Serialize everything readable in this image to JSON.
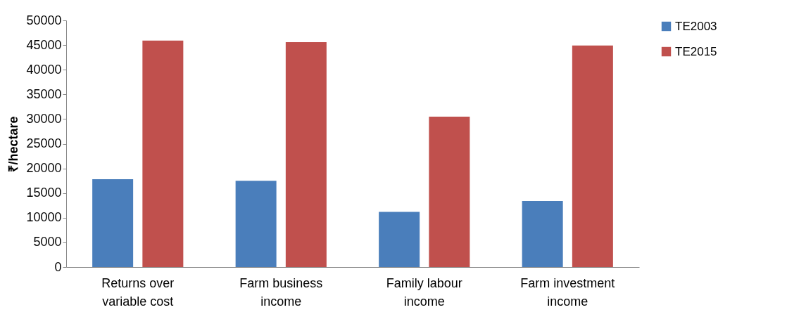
{
  "chart_data": {
    "type": "bar",
    "ylabel": "₹/hectare",
    "categories": [
      "Returns over variable cost",
      "Farm business income",
      "Family labour income",
      "Farm investment income"
    ],
    "series": [
      {
        "name": "TE2003",
        "color": "#4a7ebb",
        "values": [
          17800,
          17500,
          11200,
          13400
        ]
      },
      {
        "name": "TE2015",
        "color": "#c0504d",
        "values": [
          45900,
          45600,
          30500,
          44900
        ]
      }
    ],
    "ylim": [
      0,
      50000
    ],
    "yticks": [
      0,
      5000,
      10000,
      15000,
      20000,
      25000,
      30000,
      35000,
      40000,
      45000,
      50000
    ],
    "grid": false,
    "legend": "right"
  }
}
